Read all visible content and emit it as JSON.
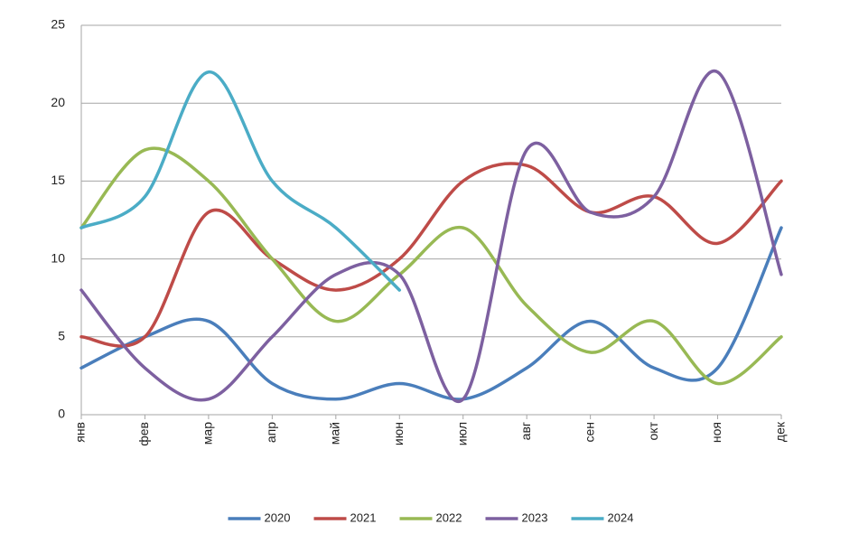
{
  "chart_data": {
    "type": "line",
    "categories": [
      "янв",
      "фев",
      "мар",
      "апр",
      "май",
      "июн",
      "июл",
      "авг",
      "сен",
      "окт",
      "ноя",
      "дек"
    ],
    "series": [
      {
        "name": "2020",
        "color": "#4a7ebb",
        "values": [
          3,
          5,
          6,
          2,
          1,
          2,
          1,
          3,
          6,
          3,
          3,
          12
        ]
      },
      {
        "name": "2021",
        "color": "#be4b48",
        "values": [
          5,
          5,
          13,
          10,
          8,
          10,
          15,
          16,
          13,
          14,
          11,
          15
        ]
      },
      {
        "name": "2022",
        "color": "#98b954",
        "values": [
          12,
          17,
          15,
          10,
          6,
          9,
          12,
          7,
          4,
          6,
          2,
          5
        ]
      },
      {
        "name": "2023",
        "color": "#7d60a0",
        "values": [
          8,
          3,
          1,
          5,
          9,
          9,
          1,
          17,
          13,
          14,
          22,
          9
        ]
      },
      {
        "name": "2024",
        "color": "#4bacc6",
        "values": [
          12,
          14,
          22,
          15,
          12,
          8,
          null,
          null,
          null,
          null,
          null,
          null
        ]
      }
    ],
    "ylim": [
      0,
      25
    ],
    "yticks": [
      0,
      5,
      10,
      15,
      20,
      25
    ],
    "grid": true,
    "smooth": true,
    "legend": "bottom"
  }
}
